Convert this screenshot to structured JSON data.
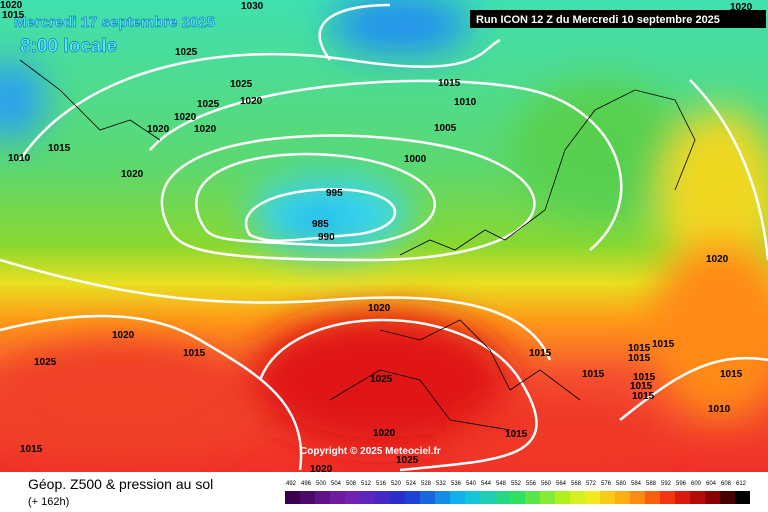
{
  "header": {
    "date": "Mercredi 17 septembre 2025",
    "time": "8:00 locale",
    "run": "Run ICON 12 Z du Mercredi 10 septembre 2025"
  },
  "map": {
    "copyright": "Copyright © 2025 Meteociel.fr",
    "isobar_labels": [
      "1020",
      "1015",
      "1030",
      "1025",
      "1025",
      "1020",
      "1025",
      "1020",
      "1020",
      "1020",
      "1015",
      "1010",
      "1020",
      "1015",
      "1010",
      "1005",
      "1000",
      "995",
      "985",
      "990",
      "1020",
      "1020",
      "1020",
      "1020",
      "1015",
      "1025",
      "1015",
      "1015",
      "1015",
      "1015",
      "1015",
      "1015",
      "1015",
      "1015",
      "1015",
      "1025",
      "1010",
      "1015",
      "1020",
      "1025",
      "1015",
      "1020"
    ]
  },
  "footer": {
    "title": "Géop. Z500 & pression au sol",
    "lead": "(+ 162h)"
  },
  "scale": {
    "labels": [
      492,
      496,
      500,
      504,
      508,
      512,
      516,
      520,
      524,
      528,
      532,
      536,
      540,
      544,
      548,
      552,
      556,
      560,
      564,
      568,
      572,
      576,
      580,
      584,
      588,
      592,
      596,
      600,
      604,
      608,
      612
    ]
  }
}
